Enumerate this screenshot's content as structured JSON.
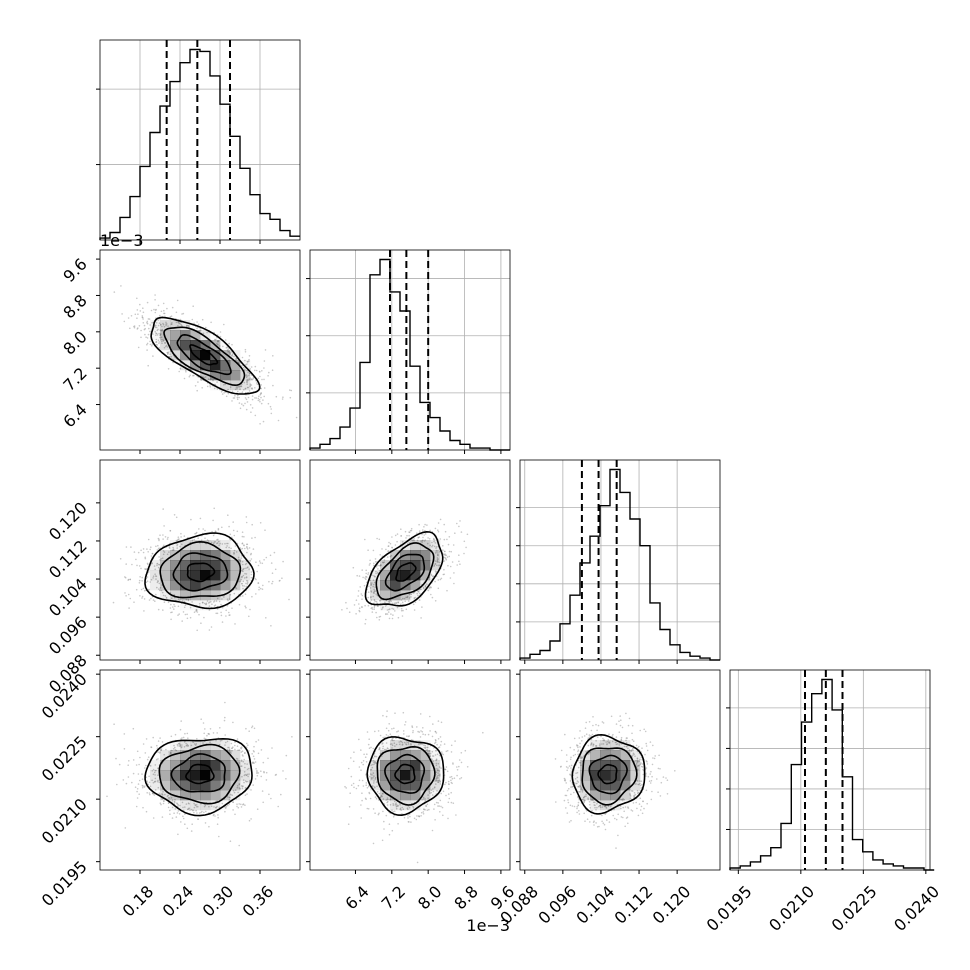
{
  "chart_data": {
    "type": "corner",
    "grid": true,
    "colors": {
      "line": "#000000",
      "grid": "#b0b0b0",
      "density": "#000000",
      "points": "#9a9a9a",
      "background": "#ffffff"
    },
    "parameters": [
      {
        "range": [
          0.12,
          0.42
        ],
        "ticks": [
          0.18,
          0.24,
          0.3,
          0.36
        ],
        "tick_labels": [
          "0.18",
          "0.24",
          "0.30",
          "0.36"
        ],
        "offset_label": ""
      },
      {
        "range": [
          0.0054,
          0.0098
        ],
        "ticks": [
          0.0064,
          0.0072,
          0.008,
          0.0088,
          0.0096
        ],
        "tick_labels": [
          "6.4",
          "7.2",
          "8.0",
          "8.8",
          "9.6"
        ],
        "offset_label": "1e−3"
      },
      {
        "range": [
          0.087,
          0.129
        ],
        "ticks": [
          0.088,
          0.096,
          0.104,
          0.112,
          0.12
        ],
        "tick_labels": [
          "0.088",
          "0.096",
          "0.104",
          "0.112",
          "0.120"
        ],
        "offset_label": ""
      },
      {
        "range": [
          0.0193,
          0.0241
        ],
        "ticks": [
          0.0195,
          0.021,
          0.0225,
          0.024
        ],
        "tick_labels": [
          "0.0195",
          "0.0210",
          "0.0225",
          "0.0240"
        ],
        "offset_label": ""
      }
    ],
    "histograms": [
      {
        "parameter": 0,
        "bins": [
          0.12,
          0.135,
          0.15,
          0.165,
          0.18,
          0.195,
          0.21,
          0.225,
          0.24,
          0.255,
          0.27,
          0.285,
          0.3,
          0.315,
          0.33,
          0.345,
          0.36,
          0.375,
          0.39,
          0.405,
          0.42
        ],
        "counts": [
          1,
          4,
          12,
          23,
          39,
          57,
          71,
          84,
          94,
          101,
          100,
          87,
          72,
          55,
          38,
          24,
          14,
          11,
          5,
          2
        ],
        "quantiles": [
          0.22,
          0.266,
          0.315
        ],
        "y_ticks": [
          40,
          80
        ]
      },
      {
        "parameter": 1,
        "bins": [
          0.0054,
          0.00562,
          0.00584,
          0.00606,
          0.00628,
          0.0065,
          0.00672,
          0.00694,
          0.00716,
          0.00738,
          0.0076,
          0.00782,
          0.00804,
          0.00826,
          0.00848,
          0.0087,
          0.00892,
          0.00914,
          0.00936,
          0.00958,
          0.0098
        ],
        "counts": [
          1,
          3,
          6,
          12,
          22,
          46,
          92,
          100,
          83,
          73,
          44,
          25,
          17,
          10,
          5,
          3,
          1,
          1,
          0,
          0
        ],
        "quantiles": [
          0.00716,
          0.00752,
          0.008
        ],
        "y_ticks": [
          30,
          60,
          90
        ]
      },
      {
        "parameter": 2,
        "bins": [
          0.087,
          0.0891,
          0.0912,
          0.0933,
          0.0954,
          0.0975,
          0.0996,
          0.1017,
          0.1038,
          0.1059,
          0.108,
          0.1101,
          0.1122,
          0.1143,
          0.1164,
          0.1185,
          0.1206,
          0.1227,
          0.1248,
          0.1269,
          0.129
        ],
        "counts": [
          1,
          3,
          5,
          10,
          19,
          34,
          51,
          65,
          81,
          100,
          88,
          74,
          60,
          30,
          16,
          8,
          4,
          2,
          1,
          0
        ],
        "quantiles": [
          0.1,
          0.1035,
          0.1073
        ],
        "y_ticks": [
          20,
          40,
          60,
          80
        ]
      },
      {
        "parameter": 3,
        "bins": [
          0.0193,
          0.019545,
          0.01979,
          0.020035,
          0.02028,
          0.020525,
          0.02077,
          0.021015,
          0.02126,
          0.021505,
          0.02175,
          0.021995,
          0.02224,
          0.022485,
          0.02273,
          0.022975,
          0.02322,
          0.023465,
          0.02371,
          0.023955,
          0.0242
        ],
        "counts": [
          1,
          2,
          4,
          7,
          11,
          23,
          52,
          73,
          87,
          94,
          79,
          46,
          15,
          9,
          5,
          3,
          2,
          1,
          1,
          0
        ],
        "quantiles": [
          0.0211,
          0.0216,
          0.022
        ],
        "y_ticks": [
          20,
          40,
          60,
          80
        ]
      }
    ],
    "pairs": [
      {
        "x": 0,
        "y": 1,
        "mean": [
          0.275,
          0.00748
        ],
        "sd": [
          0.04,
          0.00042
        ],
        "corr": -0.75
      },
      {
        "x": 0,
        "y": 2,
        "mean": [
          0.27,
          0.1055
        ],
        "sd": [
          0.04,
          0.0038
        ],
        "corr": 0.05
      },
      {
        "x": 1,
        "y": 2,
        "mean": [
          0.0075,
          0.1055
        ],
        "sd": [
          0.00042,
          0.0038
        ],
        "corr": 0.5
      },
      {
        "x": 0,
        "y": 3,
        "mean": [
          0.27,
          0.0216
        ],
        "sd": [
          0.04,
          0.00045
        ],
        "corr": 0.05
      },
      {
        "x": 1,
        "y": 3,
        "mean": [
          0.0075,
          0.0216
        ],
        "sd": [
          0.00042,
          0.00045
        ],
        "corr": 0.0
      },
      {
        "x": 2,
        "y": 3,
        "mean": [
          0.1055,
          0.0216
        ],
        "sd": [
          0.0038,
          0.00045
        ],
        "corr": 0.05
      }
    ],
    "contour_levels_sigma": [
      0.5,
      1.0,
      1.5,
      2.0
    ]
  }
}
